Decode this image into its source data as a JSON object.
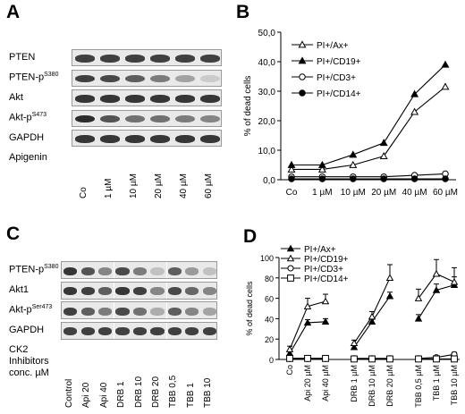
{
  "panels": {
    "A": {
      "letter": "A",
      "rows": [
        {
          "label": "PTEN",
          "sup": "",
          "intensity": [
            0.85,
            0.85,
            0.85,
            0.85,
            0.85,
            0.85
          ]
        },
        {
          "label": "PTEN-p",
          "sup": "S380",
          "intensity": [
            0.85,
            0.8,
            0.7,
            0.55,
            0.35,
            0.15
          ]
        },
        {
          "label": "Akt",
          "sup": "",
          "intensity": [
            0.9,
            0.9,
            0.9,
            0.9,
            0.9,
            0.9
          ]
        },
        {
          "label": "Akt-p",
          "sup": "S473",
          "intensity": [
            0.95,
            0.75,
            0.6,
            0.6,
            0.55,
            0.5
          ]
        },
        {
          "label": "GAPDH",
          "sup": "",
          "intensity": [
            0.9,
            0.9,
            0.9,
            0.9,
            0.9,
            0.9
          ]
        }
      ],
      "treatment_label": "Apigenin",
      "lanes": [
        "Co",
        "1 µM",
        "10 µM",
        "20 µM",
        "40 µM",
        "60 µM"
      ]
    },
    "B": {
      "letter": "B"
    },
    "C": {
      "letter": "C",
      "rows": [
        {
          "label": "PTEN-p",
          "sup": "S380",
          "intensity": [
            0.9,
            0.75,
            0.5,
            0.8,
            0.55,
            0.2,
            0.7,
            0.4,
            0.2
          ]
        },
        {
          "label": "Akt1",
          "sup": "",
          "intensity": [
            0.9,
            0.85,
            0.7,
            0.9,
            0.85,
            0.5,
            0.8,
            0.65,
            0.5
          ]
        },
        {
          "label": "Akt-p",
          "sup": "Ser473",
          "intensity": [
            0.85,
            0.7,
            0.55,
            0.8,
            0.6,
            0.3,
            0.7,
            0.5,
            0.35
          ]
        },
        {
          "label": "GAPDH",
          "sup": "",
          "intensity": [
            0.85,
            0.85,
            0.85,
            0.85,
            0.85,
            0.85,
            0.85,
            0.85,
            0.85
          ]
        }
      ],
      "treatment_label": [
        "CK2",
        "Inhibitors",
        "conc. µM"
      ],
      "lanes": [
        "Control",
        "Api 20",
        "Api 40",
        "DRB 1",
        "DRB 10",
        "DRB 20",
        "TBB 0,5",
        "TBB 1",
        "TBB 10"
      ]
    },
    "D": {
      "letter": "D"
    }
  },
  "chart_data": [
    {
      "panel": "B",
      "type": "line",
      "categories": [
        "Co",
        "1 µM",
        "10 µM",
        "20 µM",
        "40 µM",
        "60 µM"
      ],
      "ylabel": "% of dead cells",
      "ylim": [
        0,
        50
      ],
      "yticks": [
        "0,0",
        "10,0",
        "20,0",
        "30,0",
        "40,0",
        "50,0"
      ],
      "legend_position": "top-left",
      "series": [
        {
          "name": "PI+/Ax+",
          "marker": "open-triangle",
          "values": [
            3.5,
            3.5,
            5.0,
            8.0,
            23.0,
            31.5
          ]
        },
        {
          "name": "PI+/CD19+",
          "marker": "filled-triangle",
          "values": [
            5.0,
            5.0,
            8.5,
            12.5,
            29.0,
            39.0
          ]
        },
        {
          "name": "PI+/CD3+",
          "marker": "open-circle",
          "values": [
            1.0,
            1.0,
            1.0,
            1.0,
            1.5,
            2.0
          ]
        },
        {
          "name": "PI+/CD14+",
          "marker": "filled-circle",
          "values": [
            0.3,
            0.3,
            0.3,
            0.3,
            0.3,
            0.3
          ]
        }
      ]
    },
    {
      "panel": "D",
      "type": "line",
      "groups": [
        {
          "categories": [
            "Co",
            "Api 20 µM",
            "Api 40 µM"
          ]
        },
        {
          "categories": [
            "DRB 1 µM",
            "DRB 10 µM",
            "DRB 20 µM"
          ]
        },
        {
          "categories": [
            "TBB 0,5 µM",
            "TBB 1 µM",
            "TBB 10 µM"
          ]
        }
      ],
      "ylabel": "% of dead cells",
      "ylim": [
        0,
        100
      ],
      "yticks": [
        "0",
        "20",
        "40",
        "60",
        "80",
        "100"
      ],
      "legend_position": "top",
      "series": [
        {
          "name": "PI+/Ax+",
          "marker": "filled-triangle",
          "values": [
            [
              6,
              36,
              37
            ],
            [
              12,
              37,
              62
            ],
            [
              40,
              68,
              73
            ]
          ],
          "errors": [
            [
              2,
              3,
              3
            ],
            [
              2,
              3,
              4
            ],
            [
              4,
              6,
              8
            ]
          ]
        },
        {
          "name": "PI+/CD19+",
          "marker": "open-triangle",
          "values": [
            [
              10,
              52,
              57
            ],
            [
              16,
              42,
              80
            ],
            [
              60,
              84,
              76
            ]
          ],
          "errors": [
            [
              3,
              8,
              7
            ],
            [
              3,
              5,
              13
            ],
            [
              9,
              14,
              14
            ]
          ]
        },
        {
          "name": "PI+/CD3+",
          "marker": "open-circle",
          "values": [
            [
              1,
              1,
              1
            ],
            [
              1,
              1,
              1
            ],
            [
              1,
              2,
              5
            ]
          ],
          "errors": [
            [
              0,
              0,
              0
            ],
            [
              0,
              0,
              0
            ],
            [
              0,
              1,
              2
            ]
          ]
        },
        {
          "name": "PI+/CD14+",
          "marker": "open-square",
          "values": [
            [
              1,
              1,
              1
            ],
            [
              0.5,
              0.5,
              0.5
            ],
            [
              0.5,
              0.5,
              0.5
            ]
          ],
          "errors": [
            [
              0,
              0,
              0
            ],
            [
              0,
              0,
              0
            ],
            [
              0,
              0,
              0
            ]
          ]
        }
      ]
    }
  ]
}
